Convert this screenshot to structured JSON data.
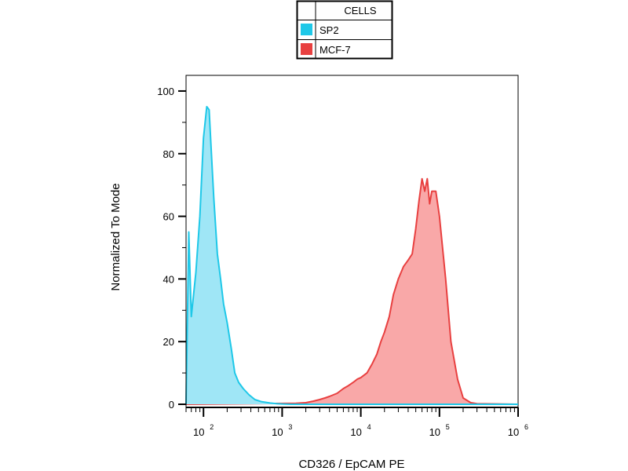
{
  "chart_data": {
    "type": "area",
    "xlabel": "CD326 / EpCAM  PE",
    "ylabel": "Normalized To Mode",
    "x_scale": "log",
    "xlim": [
      60,
      1000000
    ],
    "ylim": [
      0,
      105
    ],
    "x_ticks": [
      {
        "value": 100,
        "base": "10",
        "exp": "2"
      },
      {
        "value": 1000,
        "base": "10",
        "exp": "3"
      },
      {
        "value": 10000,
        "base": "10",
        "exp": "4"
      },
      {
        "value": 100000,
        "base": "10",
        "exp": "5"
      },
      {
        "value": 1000000,
        "base": "10",
        "exp": "6"
      }
    ],
    "y_ticks": [
      "0",
      "20",
      "40",
      "60",
      "80",
      "100"
    ],
    "legend": {
      "title": "CELLS",
      "placement": "top-center"
    },
    "series": [
      {
        "name": "SP2",
        "color": "#1ec8e8",
        "fill": "#9fe6f6",
        "x": [
          60,
          65,
          70,
          80,
          90,
          100,
          110,
          118,
          125,
          135,
          150,
          165,
          180,
          200,
          225,
          250,
          280,
          320,
          380,
          450,
          550,
          700,
          850,
          1000,
          1300,
          1700,
          2200,
          3000,
          5000,
          10000,
          50000,
          200000,
          1000000
        ],
        "y": [
          0,
          55,
          28,
          42,
          60,
          85,
          95,
          94,
          82,
          66,
          48,
          40,
          32,
          26,
          18,
          10,
          7,
          5,
          3,
          1.5,
          0.8,
          0.4,
          0.2,
          0.1,
          0,
          0,
          0,
          0,
          0,
          0,
          0,
          0,
          0
        ]
      },
      {
        "name": "MCF-7",
        "color": "#e84040",
        "fill": "#f9a8a8",
        "x": [
          60,
          1500,
          2000,
          2500,
          3000,
          3500,
          4000,
          5000,
          6000,
          7000,
          8000,
          9000,
          10000,
          12000,
          14000,
          16000,
          18000,
          20000,
          23000,
          26000,
          30000,
          35000,
          40000,
          45000,
          50000,
          55000,
          60000,
          65000,
          70000,
          75000,
          80000,
          90000,
          100000,
          120000,
          140000,
          170000,
          200000,
          250000,
          300000,
          1000000
        ],
        "y": [
          0,
          0.3,
          0.5,
          1,
          1.5,
          2,
          2.5,
          3.5,
          5,
          6,
          7,
          8,
          8.5,
          10,
          13,
          16,
          20,
          23,
          28,
          35,
          40,
          44,
          46,
          48,
          56,
          65,
          72,
          68,
          72,
          64,
          68,
          68,
          60,
          40,
          20,
          8,
          2,
          0.5,
          0.2,
          0
        ]
      }
    ]
  }
}
